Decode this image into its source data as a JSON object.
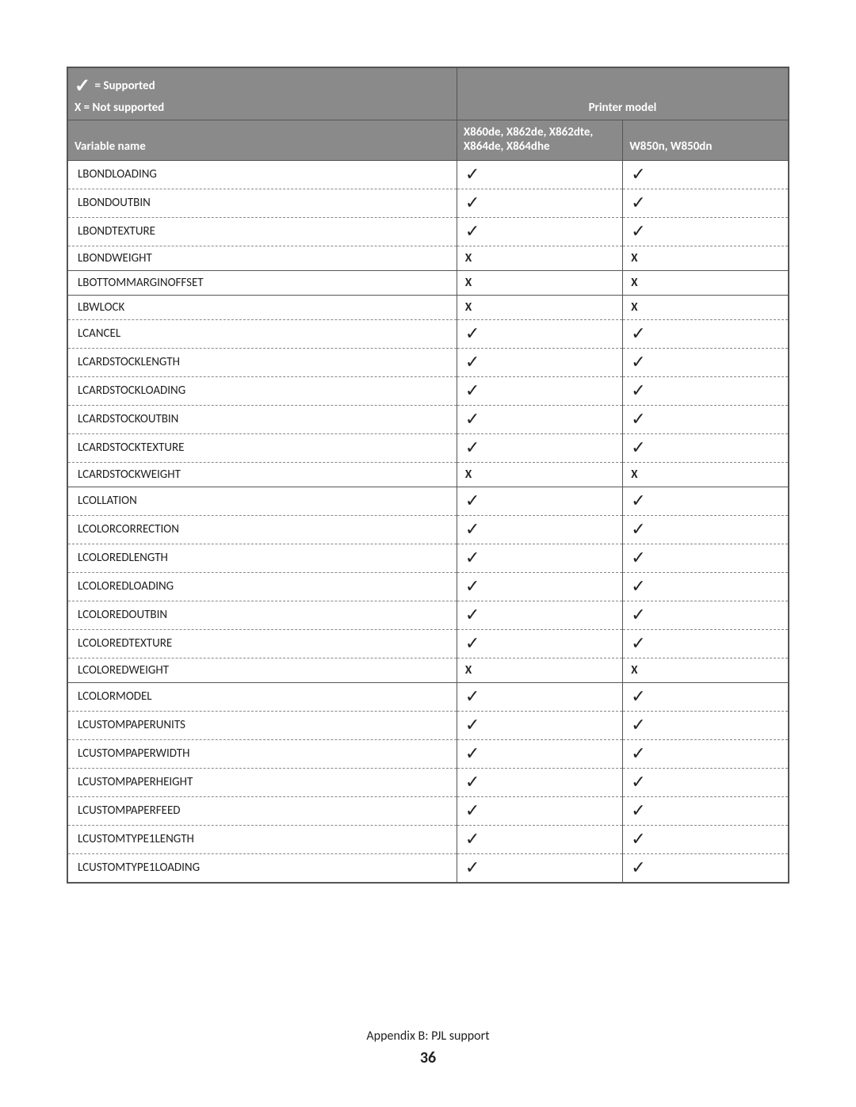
{
  "legend": {
    "supported_symbol": "✓",
    "supported_text": " = Supported",
    "not_supported_text": "X = Not supported"
  },
  "header": {
    "printer_model_label": "Printer model",
    "variable_name_label": "Variable name",
    "printer1_label": "X860de, X862de, X862dte, X864de, X864dhe",
    "printer2_label": "W850n, W850dn"
  },
  "marks": {
    "check": "✓",
    "x": "X"
  },
  "rows": [
    {
      "name": "LBONDLOADING",
      "p1": "check",
      "p2": "check",
      "sep": "dashed"
    },
    {
      "name": "LBONDOUTBIN",
      "p1": "check",
      "p2": "check",
      "sep": "dashed"
    },
    {
      "name": "LBONDTEXTURE",
      "p1": "check",
      "p2": "check",
      "sep": "dashed"
    },
    {
      "name": "LBONDWEIGHT",
      "p1": "x",
      "p2": "x",
      "sep": "solid"
    },
    {
      "name": "LBOTTOMMARGINOFFSET",
      "p1": "x",
      "p2": "x",
      "sep": "solid"
    },
    {
      "name": "LBWLOCK",
      "p1": "x",
      "p2": "x",
      "sep": "dashed"
    },
    {
      "name": "LCANCEL",
      "p1": "check",
      "p2": "check",
      "sep": "dashed"
    },
    {
      "name": "LCARDSTOCKLENGTH",
      "p1": "check",
      "p2": "check",
      "sep": "dashed"
    },
    {
      "name": "LCARDSTOCKLOADING",
      "p1": "check",
      "p2": "check",
      "sep": "dashed"
    },
    {
      "name": "LCARDSTOCKOUTBIN",
      "p1": "check",
      "p2": "check",
      "sep": "dashed"
    },
    {
      "name": "LCARDSTOCKTEXTURE",
      "p1": "check",
      "p2": "check",
      "sep": "dashed"
    },
    {
      "name": "LCARDSTOCKWEIGHT",
      "p1": "x",
      "p2": "x",
      "sep": "solid"
    },
    {
      "name": "LCOLLATION",
      "p1": "check",
      "p2": "check",
      "sep": "dashed"
    },
    {
      "name": "LCOLORCORRECTION",
      "p1": "check",
      "p2": "check",
      "sep": "dashed"
    },
    {
      "name": "LCOLOREDLENGTH",
      "p1": "check",
      "p2": "check",
      "sep": "dashed"
    },
    {
      "name": "LCOLOREDLOADING",
      "p1": "check",
      "p2": "check",
      "sep": "dashed"
    },
    {
      "name": "LCOLOREDOUTBIN",
      "p1": "check",
      "p2": "check",
      "sep": "dashed"
    },
    {
      "name": "LCOLOREDTEXTURE",
      "p1": "check",
      "p2": "check",
      "sep": "dashed"
    },
    {
      "name": "LCOLOREDWEIGHT",
      "p1": "x",
      "p2": "x",
      "sep": "solid"
    },
    {
      "name": "LCOLORMODEL",
      "p1": "check",
      "p2": "check",
      "sep": "dashed"
    },
    {
      "name": "LCUSTOMPAPERUNITS",
      "p1": "check",
      "p2": "check",
      "sep": "dashed"
    },
    {
      "name": "LCUSTOMPAPERWIDTH",
      "p1": "check",
      "p2": "check",
      "sep": "dashed"
    },
    {
      "name": "LCUSTOMPAPERHEIGHT",
      "p1": "check",
      "p2": "check",
      "sep": "dashed"
    },
    {
      "name": "LCUSTOMPAPERFEED",
      "p1": "check",
      "p2": "check",
      "sep": "dashed"
    },
    {
      "name": "LCUSTOMTYPE1LENGTH",
      "p1": "check",
      "p2": "check",
      "sep": "dashed"
    },
    {
      "name": "LCUSTOMTYPE1LOADING",
      "p1": "check",
      "p2": "check",
      "sep": "solid"
    }
  ],
  "footer": {
    "appendix": "Appendix B: PJL support",
    "page_number": "36"
  }
}
